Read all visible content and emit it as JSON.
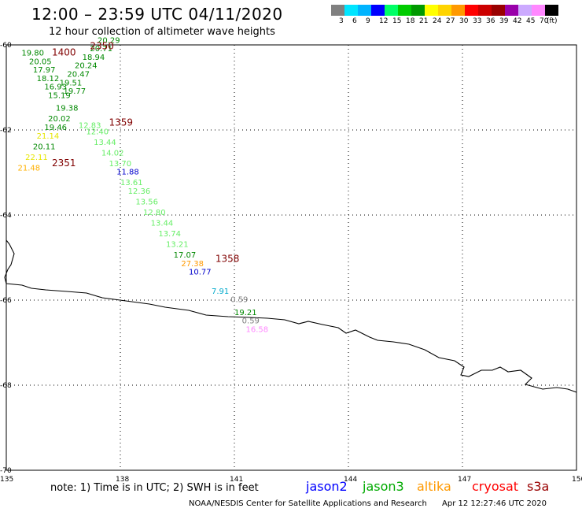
{
  "header": {
    "title": "12:00 – 23:59 UTC 04/11/2020",
    "subtitle": "12 hour collection of altimeter wave heights"
  },
  "colorbar": {
    "colors": [
      "#808080",
      "#00e5ff",
      "#00b4ff",
      "#0000ff",
      "#00ff66",
      "#00cc00",
      "#009900",
      "#ffff00",
      "#ffd400",
      "#ff9900",
      "#ff0000",
      "#cc0000",
      "#990000",
      "#9900aa",
      "#ccaaff",
      "#ff88ff",
      "#000000"
    ],
    "labels": [
      "3",
      "6",
      "9",
      "12",
      "15",
      "18",
      "21",
      "24",
      "27",
      "30",
      "33",
      "36",
      "39",
      "42",
      "45",
      "70",
      "(ft)"
    ]
  },
  "map": {
    "lon_range": [
      135,
      150
    ],
    "lat_range": [
      -70,
      -60
    ],
    "x_ticks": [
      "135",
      "138",
      "141",
      "144",
      "147",
      "150"
    ],
    "y_ticks": [
      "-60",
      "-62",
      "-64",
      "-66",
      "-68",
      "-70"
    ]
  },
  "time_labels": [
    {
      "text": "2350",
      "lon": 137.2,
      "lat": -60.1,
      "color": "#800000"
    },
    {
      "text": "1400",
      "lon": 136.2,
      "lat": -60.25,
      "color": "#800000"
    },
    {
      "text": "1359",
      "lon": 137.7,
      "lat": -61.9,
      "color": "#800000"
    },
    {
      "text": "2351",
      "lon": 136.2,
      "lat": -62.85,
      "color": "#800000"
    },
    {
      "text": "1358",
      "lon": 140.5,
      "lat": -65.1,
      "color": "#800000"
    }
  ],
  "observations": [
    {
      "value": "19.80",
      "lon": 135.4,
      "lat": -60.25,
      "color": "#008800"
    },
    {
      "value": "20.05",
      "lon": 135.6,
      "lat": -60.45,
      "color": "#008800"
    },
    {
      "value": "17.97",
      "lon": 135.7,
      "lat": -60.65,
      "color": "#008800"
    },
    {
      "value": "18.12",
      "lon": 135.8,
      "lat": -60.85,
      "color": "#008800"
    },
    {
      "value": "16.93",
      "lon": 136.0,
      "lat": -61.05,
      "color": "#008800"
    },
    {
      "value": "15.19",
      "lon": 136.1,
      "lat": -61.25,
      "color": "#008800"
    },
    {
      "value": "19.38",
      "lon": 136.3,
      "lat": -61.55,
      "color": "#008800"
    },
    {
      "value": "20.02",
      "lon": 136.1,
      "lat": -61.8,
      "color": "#008800"
    },
    {
      "value": "19.46",
      "lon": 136.0,
      "lat": -62.0,
      "color": "#008800"
    },
    {
      "value": "21.14",
      "lon": 135.8,
      "lat": -62.2,
      "color": "#e6e600"
    },
    {
      "value": "20.11",
      "lon": 135.7,
      "lat": -62.45,
      "color": "#008800"
    },
    {
      "value": "22.11",
      "lon": 135.5,
      "lat": -62.7,
      "color": "#e6e600"
    },
    {
      "value": "21.48",
      "lon": 135.3,
      "lat": -62.95,
      "color": "#ffb000"
    },
    {
      "value": "20.29",
      "lon": 137.4,
      "lat": -59.95,
      "color": "#008800"
    },
    {
      "value": "20.71",
      "lon": 137.2,
      "lat": -60.15,
      "color": "#008800"
    },
    {
      "value": "18.94",
      "lon": 137.0,
      "lat": -60.35,
      "color": "#008800"
    },
    {
      "value": "20.24",
      "lon": 136.8,
      "lat": -60.55,
      "color": "#008800"
    },
    {
      "value": "20.47",
      "lon": 136.6,
      "lat": -60.75,
      "color": "#008800"
    },
    {
      "value": "19.51",
      "lon": 136.4,
      "lat": -60.95,
      "color": "#008800"
    },
    {
      "value": "19.77",
      "lon": 136.5,
      "lat": -61.15,
      "color": "#008800"
    },
    {
      "value": "12.83",
      "lon": 136.9,
      "lat": -61.95,
      "color": "#66ee66"
    },
    {
      "value": "12.40",
      "lon": 137.1,
      "lat": -62.1,
      "color": "#66ee66"
    },
    {
      "value": "13.44",
      "lon": 137.3,
      "lat": -62.35,
      "color": "#66ee66"
    },
    {
      "value": "14.02",
      "lon": 137.5,
      "lat": -62.6,
      "color": "#66ee66"
    },
    {
      "value": "13.70",
      "lon": 137.7,
      "lat": -62.85,
      "color": "#66ee66"
    },
    {
      "value": "11.88",
      "lon": 137.9,
      "lat": -63.05,
      "color": "#0000cc"
    },
    {
      "value": "13.61",
      "lon": 138.0,
      "lat": -63.3,
      "color": "#66ee66"
    },
    {
      "value": "12.36",
      "lon": 138.2,
      "lat": -63.5,
      "color": "#66ee66"
    },
    {
      "value": "13.56",
      "lon": 138.4,
      "lat": -63.75,
      "color": "#66ee66"
    },
    {
      "value": "12.80",
      "lon": 138.6,
      "lat": -64.0,
      "color": "#66ee66"
    },
    {
      "value": "13.44",
      "lon": 138.8,
      "lat": -64.25,
      "color": "#66ee66"
    },
    {
      "value": "13.74",
      "lon": 139.0,
      "lat": -64.5,
      "color": "#66ee66"
    },
    {
      "value": "13.21",
      "lon": 139.2,
      "lat": -64.75,
      "color": "#66ee66"
    },
    {
      "value": "17.07",
      "lon": 139.4,
      "lat": -65.0,
      "color": "#008800"
    },
    {
      "value": "27.38",
      "lon": 139.6,
      "lat": -65.2,
      "color": "#ff9900"
    },
    {
      "value": "10.77",
      "lon": 139.8,
      "lat": -65.4,
      "color": "#0000cc"
    },
    {
      "value": "7.91",
      "lon": 140.4,
      "lat": -65.85,
      "color": "#00aacc"
    },
    {
      "value": "0.59",
      "lon": 140.9,
      "lat": -66.05,
      "color": "#808080"
    },
    {
      "value": "19.21",
      "lon": 141.0,
      "lat": -66.35,
      "color": "#008800"
    },
    {
      "value": "0.59",
      "lon": 141.2,
      "lat": -66.55,
      "color": "#808080"
    },
    {
      "value": "16.58",
      "lon": 141.3,
      "lat": -66.75,
      "color": "#ff88ff"
    }
  ],
  "footer": {
    "note": "note:  1) Time is in UTC;  2) SWH is in feet",
    "credit": "NOAA/NESDIS Center for Satellite Applications and Research",
    "timestamp": "Apr 12 12:27:46 UTC 2020"
  },
  "legend": [
    {
      "label": "jason2",
      "color": "#0000ff"
    },
    {
      "label": "jason3",
      "color": "#00aa00"
    },
    {
      "label": "altika",
      "color": "#ff9900"
    },
    {
      "label": "cryosat",
      "color": "#ff0000"
    },
    {
      "label": "s3a",
      "color": "#990000"
    }
  ]
}
